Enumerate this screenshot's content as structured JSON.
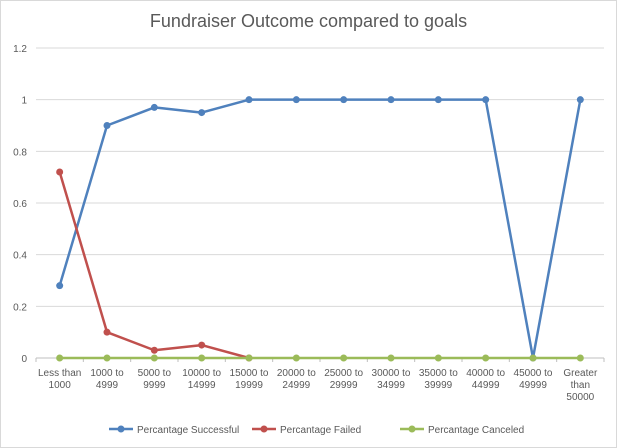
{
  "chart_data": {
    "type": "line",
    "title": "Fundraiser Outcome compared to goals",
    "categories": [
      [
        "Less than",
        "1000"
      ],
      [
        "1000 to",
        "4999"
      ],
      [
        "5000 to",
        "9999"
      ],
      [
        "10000 to",
        "14999"
      ],
      [
        "15000 to",
        "19999"
      ],
      [
        "20000 to",
        "24999"
      ],
      [
        "25000 to",
        "29999"
      ],
      [
        "30000 to",
        "34999"
      ],
      [
        "35000 to",
        "39999"
      ],
      [
        "40000 to",
        "44999"
      ],
      [
        "45000 to",
        "49999"
      ],
      [
        "Greater",
        "than",
        "50000"
      ]
    ],
    "yticks": [
      "0",
      "0.2",
      "0.4",
      "0.6",
      "0.8",
      "1",
      "1.2"
    ],
    "ylim": [
      0,
      1.2
    ],
    "grid": true,
    "legend_position": "bottom",
    "series": [
      {
        "name": "Percantage Successful",
        "color": "#4f81bd",
        "values": [
          0.28,
          0.9,
          0.97,
          0.95,
          1,
          1,
          1,
          1,
          1,
          1,
          0,
          1
        ]
      },
      {
        "name": "Percantage Failed",
        "color": "#c0504d",
        "values": [
          0.72,
          0.1,
          0.03,
          0.05,
          0,
          null,
          null,
          null,
          null,
          null,
          null,
          null
        ]
      },
      {
        "name": "Percantage Canceled",
        "color": "#9bbb59",
        "values": [
          0,
          0,
          0,
          0,
          0,
          0,
          0,
          0,
          0,
          0,
          0,
          0
        ]
      }
    ]
  }
}
